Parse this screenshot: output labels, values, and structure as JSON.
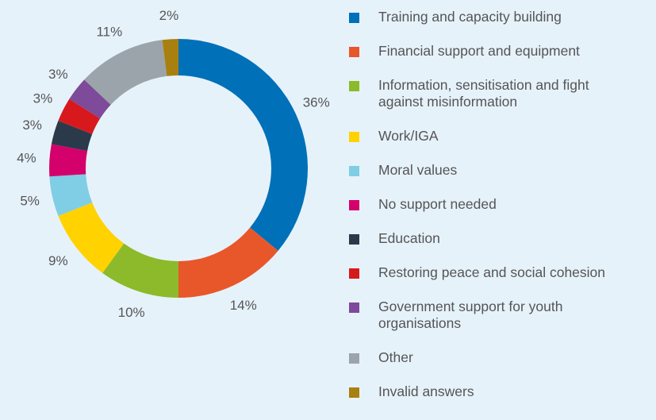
{
  "chart_data": {
    "type": "donut",
    "categories": [
      "Training and capacity building",
      "Financial support and equipment",
      "Information, sensitisation and fight against misinformation",
      "Work/IGA",
      "Moral values",
      "No support needed",
      "Education",
      "Restoring peace and social cohesion",
      "Government support for youth organisations",
      "Other",
      "Invalid answers"
    ],
    "values": [
      36,
      14,
      10,
      9,
      5,
      4,
      3,
      3,
      3,
      11,
      2
    ],
    "value_labels": [
      "36%",
      "14%",
      "10%",
      "9%",
      "5%",
      "4%",
      "3%",
      "3%",
      "3%",
      "11%",
      "2%"
    ],
    "colors": [
      "#0070b8",
      "#e8572a",
      "#8cba2a",
      "#ffd200",
      "#80cde6",
      "#d4006c",
      "#2b3a4a",
      "#d7191e",
      "#7e4a9a",
      "#9aa4aa",
      "#a8800f"
    ],
    "legend": "right"
  }
}
